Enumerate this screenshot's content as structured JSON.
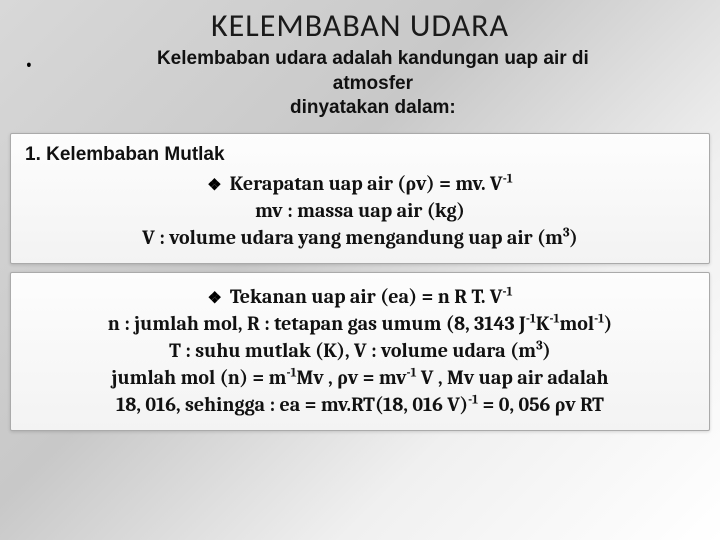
{
  "title": "KELEMBABAN UDARA",
  "intro": {
    "line1": "Kelembaban udara adalah kandungan uap air di",
    "line2": "atmosfer",
    "line3": "dinyatakan dalam:"
  },
  "panel1": {
    "heading": "1. Kelembaban Mutlak",
    "item1_pre": "Kerapatan uap air (ρv)  = mv. V",
    "item1_exp": "-1",
    "line2": "mv : massa uap air (kg)",
    "line3_pre": "V  : volume udara yang mengandung uap air (m",
    "line3_exp": "3",
    "line3_post": ")"
  },
  "panel2": {
    "item_pre": "Tekanan uap air (ea) = n R T. V",
    "item_exp": "-1",
    "l2a": "n : jumlah mol, R : tetapan gas umum (8, 3143 J",
    "l2e1": "-1",
    "l2b": "K",
    "l2e2": "-1",
    "l2c": "mol",
    "l2e3": "-1",
    "l2d": ")",
    "l3a": "T : suhu mutlak (K), V : volume udara (m",
    "l3e": "3",
    "l3b": ")",
    "l4a": "jumlah mol (n) = m",
    "l4e1": "-1",
    "l4b": "Mv , ρv = mv",
    "l4e2": "-1",
    "l4c": " V , Mv uap air adalah",
    "l5a": "18, 016, sehingga : ea = mv.RT(18, 016 V)",
    "l5e": "-1",
    "l5b": " = 0, 056 ρv RT"
  }
}
